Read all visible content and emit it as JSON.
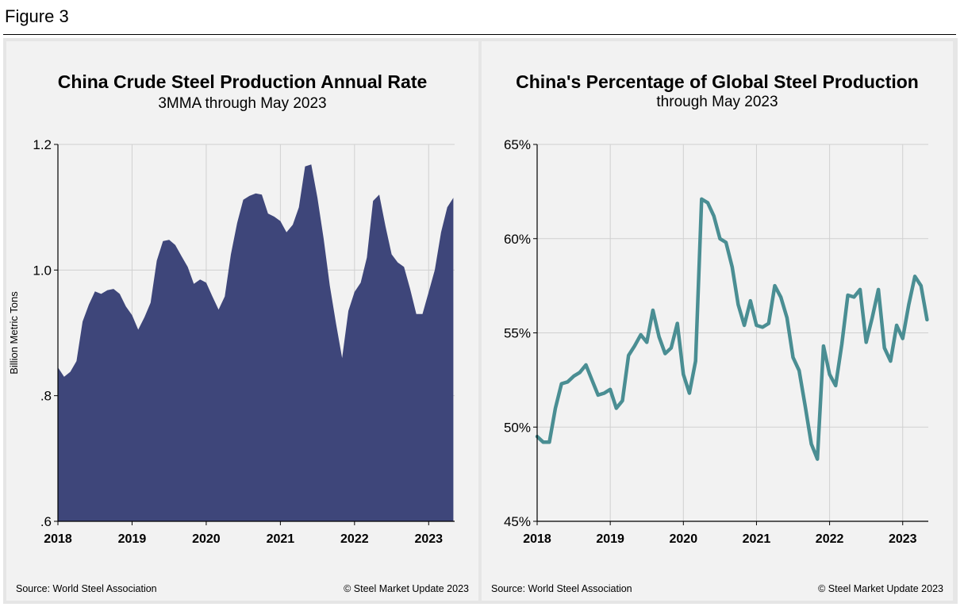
{
  "figure_label": "Figure 3",
  "colors": {
    "area_fill": "#3e467a",
    "line": "#4a8e93",
    "grid": "#d0d0d0",
    "panel_bg": "#f2f2f2",
    "outer_bg": "#e6e6e6"
  },
  "chart_data": [
    {
      "type": "area",
      "title": "China Crude Steel Production Annual Rate",
      "subtitle": "3MMA through May 2023",
      "xlabel": "",
      "ylabel": "Billion Metric Tons",
      "ylim": [
        0.6,
        1.2
      ],
      "yticks": [
        0.6,
        0.8,
        1.0,
        1.2
      ],
      "ytick_labels": [
        ".6",
        ".8",
        "1.0",
        "1.2"
      ],
      "xlim": [
        2018.0,
        2023.35
      ],
      "xticks": [
        2018,
        2019,
        2020,
        2021,
        2022,
        2023
      ],
      "xtick_labels": [
        "2018",
        "2019",
        "2020",
        "2021",
        "2022",
        "2023"
      ],
      "source": "Source: World Steel Association",
      "copyright": "© Steel Market Update 2023",
      "series": [
        {
          "name": "China crude steel production (3MMA annual rate)",
          "x": [
            2018.0,
            2018.083,
            2018.167,
            2018.25,
            2018.333,
            2018.417,
            2018.5,
            2018.583,
            2018.667,
            2018.75,
            2018.833,
            2018.917,
            2019.0,
            2019.083,
            2019.167,
            2019.25,
            2019.333,
            2019.417,
            2019.5,
            2019.583,
            2019.667,
            2019.75,
            2019.833,
            2019.917,
            2020.0,
            2020.083,
            2020.167,
            2020.25,
            2020.333,
            2020.417,
            2020.5,
            2020.583,
            2020.667,
            2020.75,
            2020.833,
            2020.917,
            2021.0,
            2021.083,
            2021.167,
            2021.25,
            2021.333,
            2021.417,
            2021.5,
            2021.583,
            2021.667,
            2021.75,
            2021.833,
            2021.917,
            2022.0,
            2022.083,
            2022.167,
            2022.25,
            2022.333,
            2022.417,
            2022.5,
            2022.583,
            2022.667,
            2022.75,
            2022.833,
            2022.917,
            2023.0,
            2023.083,
            2023.167,
            2023.25,
            2023.333
          ],
          "values": [
            0.845,
            0.83,
            0.838,
            0.855,
            0.918,
            0.945,
            0.966,
            0.962,
            0.968,
            0.97,
            0.962,
            0.942,
            0.928,
            0.905,
            0.925,
            0.948,
            1.015,
            1.046,
            1.048,
            1.04,
            1.022,
            1.005,
            0.978,
            0.985,
            0.98,
            0.958,
            0.937,
            0.958,
            1.025,
            1.075,
            1.112,
            1.118,
            1.122,
            1.12,
            1.09,
            1.085,
            1.078,
            1.06,
            1.072,
            1.1,
            1.165,
            1.168,
            1.115,
            1.05,
            0.975,
            0.915,
            0.86,
            0.935,
            0.965,
            0.98,
            1.02,
            1.11,
            1.12,
            1.07,
            1.025,
            1.012,
            1.005,
            0.97,
            0.93,
            0.93,
            0.965,
            1.0,
            1.06,
            1.1,
            1.115
          ]
        }
      ]
    },
    {
      "type": "line",
      "title": "China's Percentage of Global Steel Production",
      "subtitle": "through May 2023",
      "xlabel": "",
      "ylabel": "",
      "ylim": [
        45,
        65
      ],
      "yticks": [
        45,
        50,
        55,
        60,
        65
      ],
      "ytick_labels": [
        "45%",
        "50%",
        "55%",
        "60%",
        "65%"
      ],
      "xlim": [
        2018.0,
        2023.35
      ],
      "xticks": [
        2018,
        2019,
        2020,
        2021,
        2022,
        2023
      ],
      "xtick_labels": [
        "2018",
        "2019",
        "2020",
        "2021",
        "2022",
        "2023"
      ],
      "source": "Source: World Steel Association",
      "copyright": "© Steel Market Update 2023",
      "series": [
        {
          "name": "China share of global steel production (%)",
          "x": [
            2018.0,
            2018.083,
            2018.167,
            2018.25,
            2018.333,
            2018.417,
            2018.5,
            2018.583,
            2018.667,
            2018.75,
            2018.833,
            2018.917,
            2019.0,
            2019.083,
            2019.167,
            2019.25,
            2019.333,
            2019.417,
            2019.5,
            2019.583,
            2019.667,
            2019.75,
            2019.833,
            2019.917,
            2020.0,
            2020.083,
            2020.167,
            2020.25,
            2020.333,
            2020.417,
            2020.5,
            2020.583,
            2020.667,
            2020.75,
            2020.833,
            2020.917,
            2021.0,
            2021.083,
            2021.167,
            2021.25,
            2021.333,
            2021.417,
            2021.5,
            2021.583,
            2021.667,
            2021.75,
            2021.833,
            2021.917,
            2022.0,
            2022.083,
            2022.167,
            2022.25,
            2022.333,
            2022.417,
            2022.5,
            2022.583,
            2022.667,
            2022.75,
            2022.833,
            2022.917,
            2023.0,
            2023.083,
            2023.167,
            2023.25,
            2023.333
          ],
          "values": [
            49.5,
            49.2,
            49.2,
            51.0,
            52.3,
            52.4,
            52.7,
            52.9,
            53.3,
            52.5,
            51.7,
            51.8,
            52.0,
            51.0,
            51.4,
            53.8,
            54.3,
            54.9,
            54.5,
            56.2,
            54.8,
            53.9,
            54.2,
            55.5,
            52.8,
            51.8,
            53.5,
            62.1,
            61.9,
            61.2,
            60.0,
            59.8,
            58.5,
            56.5,
            55.4,
            56.7,
            55.4,
            55.3,
            55.5,
            57.5,
            56.9,
            55.8,
            53.7,
            53.0,
            51.1,
            49.1,
            48.3,
            54.3,
            52.8,
            52.2,
            54.4,
            57.0,
            56.9,
            57.3,
            54.5,
            55.8,
            57.3,
            54.2,
            53.5,
            55.4,
            54.7,
            56.5,
            58.0,
            57.5,
            55.7
          ]
        }
      ]
    }
  ]
}
